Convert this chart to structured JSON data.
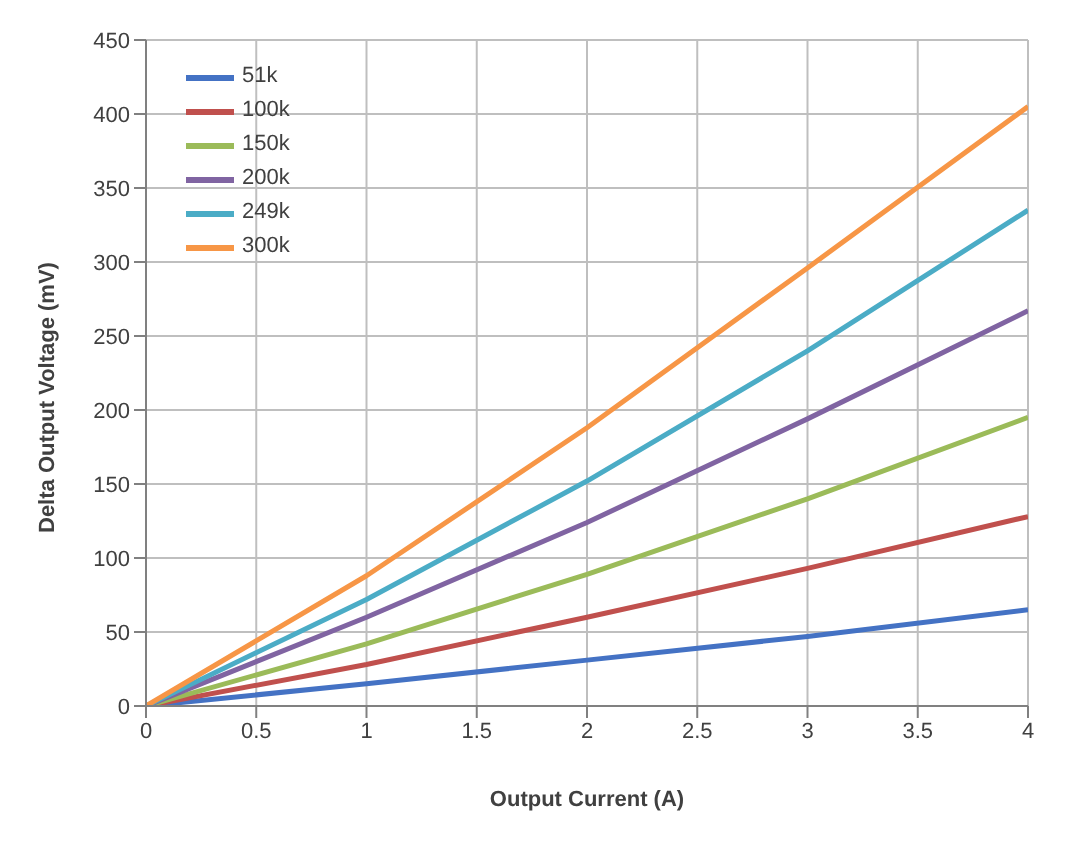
{
  "chart_data": {
    "type": "line",
    "xlabel": "Output Current (A)",
    "ylabel": "Delta Output Voltage (mV)",
    "x": [
      0,
      1,
      2,
      3,
      4
    ],
    "series": [
      {
        "name": "51k",
        "color": "#4472c4",
        "values": [
          0,
          15,
          31,
          47,
          65
        ]
      },
      {
        "name": "100k",
        "color": "#c0504d",
        "values": [
          0,
          28,
          60,
          93,
          128
        ]
      },
      {
        "name": "150k",
        "color": "#9bbb59",
        "values": [
          0,
          42,
          89,
          140,
          195
        ]
      },
      {
        "name": "200k",
        "color": "#8064a2",
        "values": [
          0,
          60,
          124,
          194,
          267
        ]
      },
      {
        "name": "249k",
        "color": "#4bacc6",
        "values": [
          0,
          72,
          152,
          240,
          335
        ]
      },
      {
        "name": "300k",
        "color": "#f79646",
        "values": [
          0,
          88,
          188,
          296,
          405
        ]
      }
    ],
    "xlim": [
      0,
      4
    ],
    "xticks": [
      0,
      0.5,
      1,
      1.5,
      2,
      2.5,
      3,
      3.5,
      4
    ],
    "ylim": [
      0,
      450
    ],
    "yticks": [
      0,
      50,
      100,
      150,
      200,
      250,
      300,
      350,
      400,
      450
    ],
    "grid": true,
    "legend": "top left",
    "marker": "none",
    "line_style": "solid"
  }
}
